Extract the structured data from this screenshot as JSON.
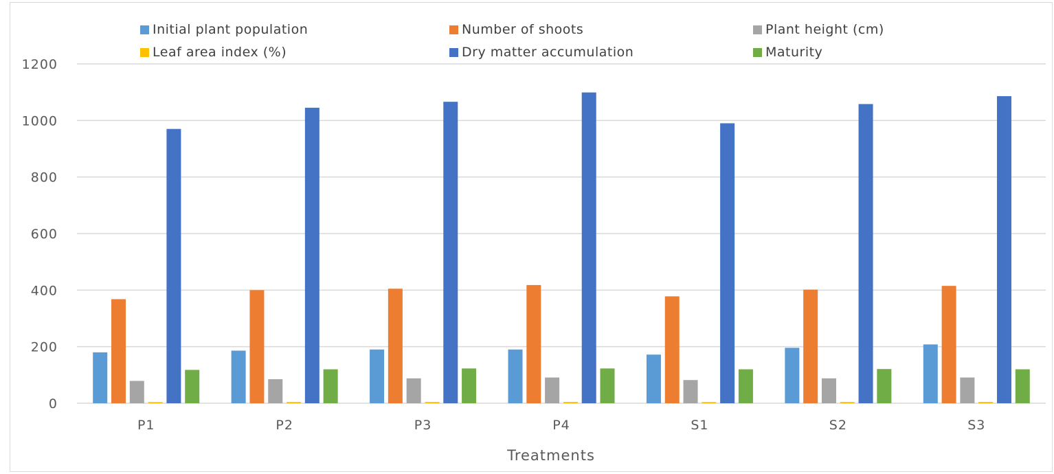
{
  "chart_data": {
    "type": "bar",
    "title": "",
    "xlabel": "Treatments",
    "ylabel": "",
    "categories": [
      "P1",
      "P2",
      "P3",
      "P4",
      "S1",
      "S2",
      "S3"
    ],
    "ylim": [
      0,
      1200
    ],
    "yticks": [
      "0",
      "200",
      "400",
      "600",
      "800",
      "1000",
      "1200"
    ],
    "grid": true,
    "legend_position": "top",
    "series": [
      {
        "name": "Initial plant population",
        "color": "#5b9bd5",
        "values": [
          180,
          186,
          190,
          190,
          172,
          196,
          208
        ]
      },
      {
        "name": "Number of shoots",
        "color": "#ed7d31",
        "values": [
          368,
          400,
          405,
          418,
          378,
          402,
          415
        ]
      },
      {
        "name": "Plant height (cm)",
        "color": "#a5a5a5",
        "values": [
          79,
          85,
          88,
          91,
          82,
          88,
          91
        ]
      },
      {
        "name": "Leaf area index (%)",
        "color": "#ffc000",
        "values": [
          4.2,
          4.4,
          4.5,
          4.6,
          4.3,
          4.5,
          4.6
        ]
      },
      {
        "name": "Dry matter accumulation",
        "color": "#4472c4",
        "values": [
          970,
          1045,
          1066,
          1099,
          990,
          1058,
          1086
        ]
      },
      {
        "name": "Maturity",
        "color": "#70ad47",
        "values": [
          118,
          120,
          123,
          123,
          120,
          121,
          120
        ]
      }
    ]
  },
  "colors": {
    "grid": "#d9d9d9",
    "text": "#595959"
  }
}
